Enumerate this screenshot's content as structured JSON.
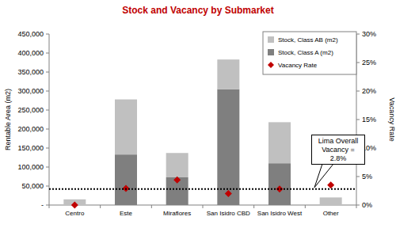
{
  "chart_data": {
    "type": "bar",
    "stacked": true,
    "title": "Stock and Vacancy by Submarket",
    "y_label": "Rentable Area (m2)",
    "y2_label": "Vacancy Rate",
    "categories": [
      "Centro",
      "Este",
      "Miraflores",
      "San Isidro CBD",
      "San Isidro West",
      "Other"
    ],
    "series": [
      {
        "name": "Stock, Class A (m2)",
        "color": "#7f7f7f",
        "values": [
          0,
          133000,
          73000,
          305000,
          110000,
          0
        ]
      },
      {
        "name": "Stock, Class AB (m2)",
        "color": "#c0c0c0",
        "values": [
          15000,
          145000,
          64000,
          78000,
          108000,
          20000
        ]
      },
      {
        "name": "Vacancy Rate",
        "type": "scatter",
        "marker": "diamond",
        "color": "#c00000",
        "axis": "y2",
        "values": [
          0,
          2.9,
          4.4,
          2.0,
          2.8,
          3.5
        ]
      }
    ],
    "ylim": [
      0,
      450000
    ],
    "yticks": [
      {
        "value": 0,
        "label": "-"
      },
      {
        "value": 50000,
        "label": "50,000"
      },
      {
        "value": 100000,
        "label": "100,000"
      },
      {
        "value": 150000,
        "label": "150,000"
      },
      {
        "value": 200000,
        "label": "200,000"
      },
      {
        "value": 250000,
        "label": "250,000"
      },
      {
        "value": 300000,
        "label": "300,000"
      },
      {
        "value": 350000,
        "label": "350,000"
      },
      {
        "value": 400000,
        "label": "400,000"
      },
      {
        "value": 450000,
        "label": "450,000"
      }
    ],
    "y2lim": [
      0,
      30
    ],
    "y2ticks": [
      {
        "value": 0,
        "label": "0%"
      },
      {
        "value": 5,
        "label": "5%"
      },
      {
        "value": 10,
        "label": "10%"
      },
      {
        "value": 15,
        "label": "15%"
      },
      {
        "value": 20,
        "label": "20%"
      },
      {
        "value": 25,
        "label": "25%"
      },
      {
        "value": 30,
        "label": "30%"
      }
    ],
    "annotation": {
      "text": "Lima Overall Vacancy = 2.8%",
      "value": 2.8,
      "axis": "y2",
      "line_style": "dotted"
    },
    "legend": "top right",
    "grid": false
  }
}
